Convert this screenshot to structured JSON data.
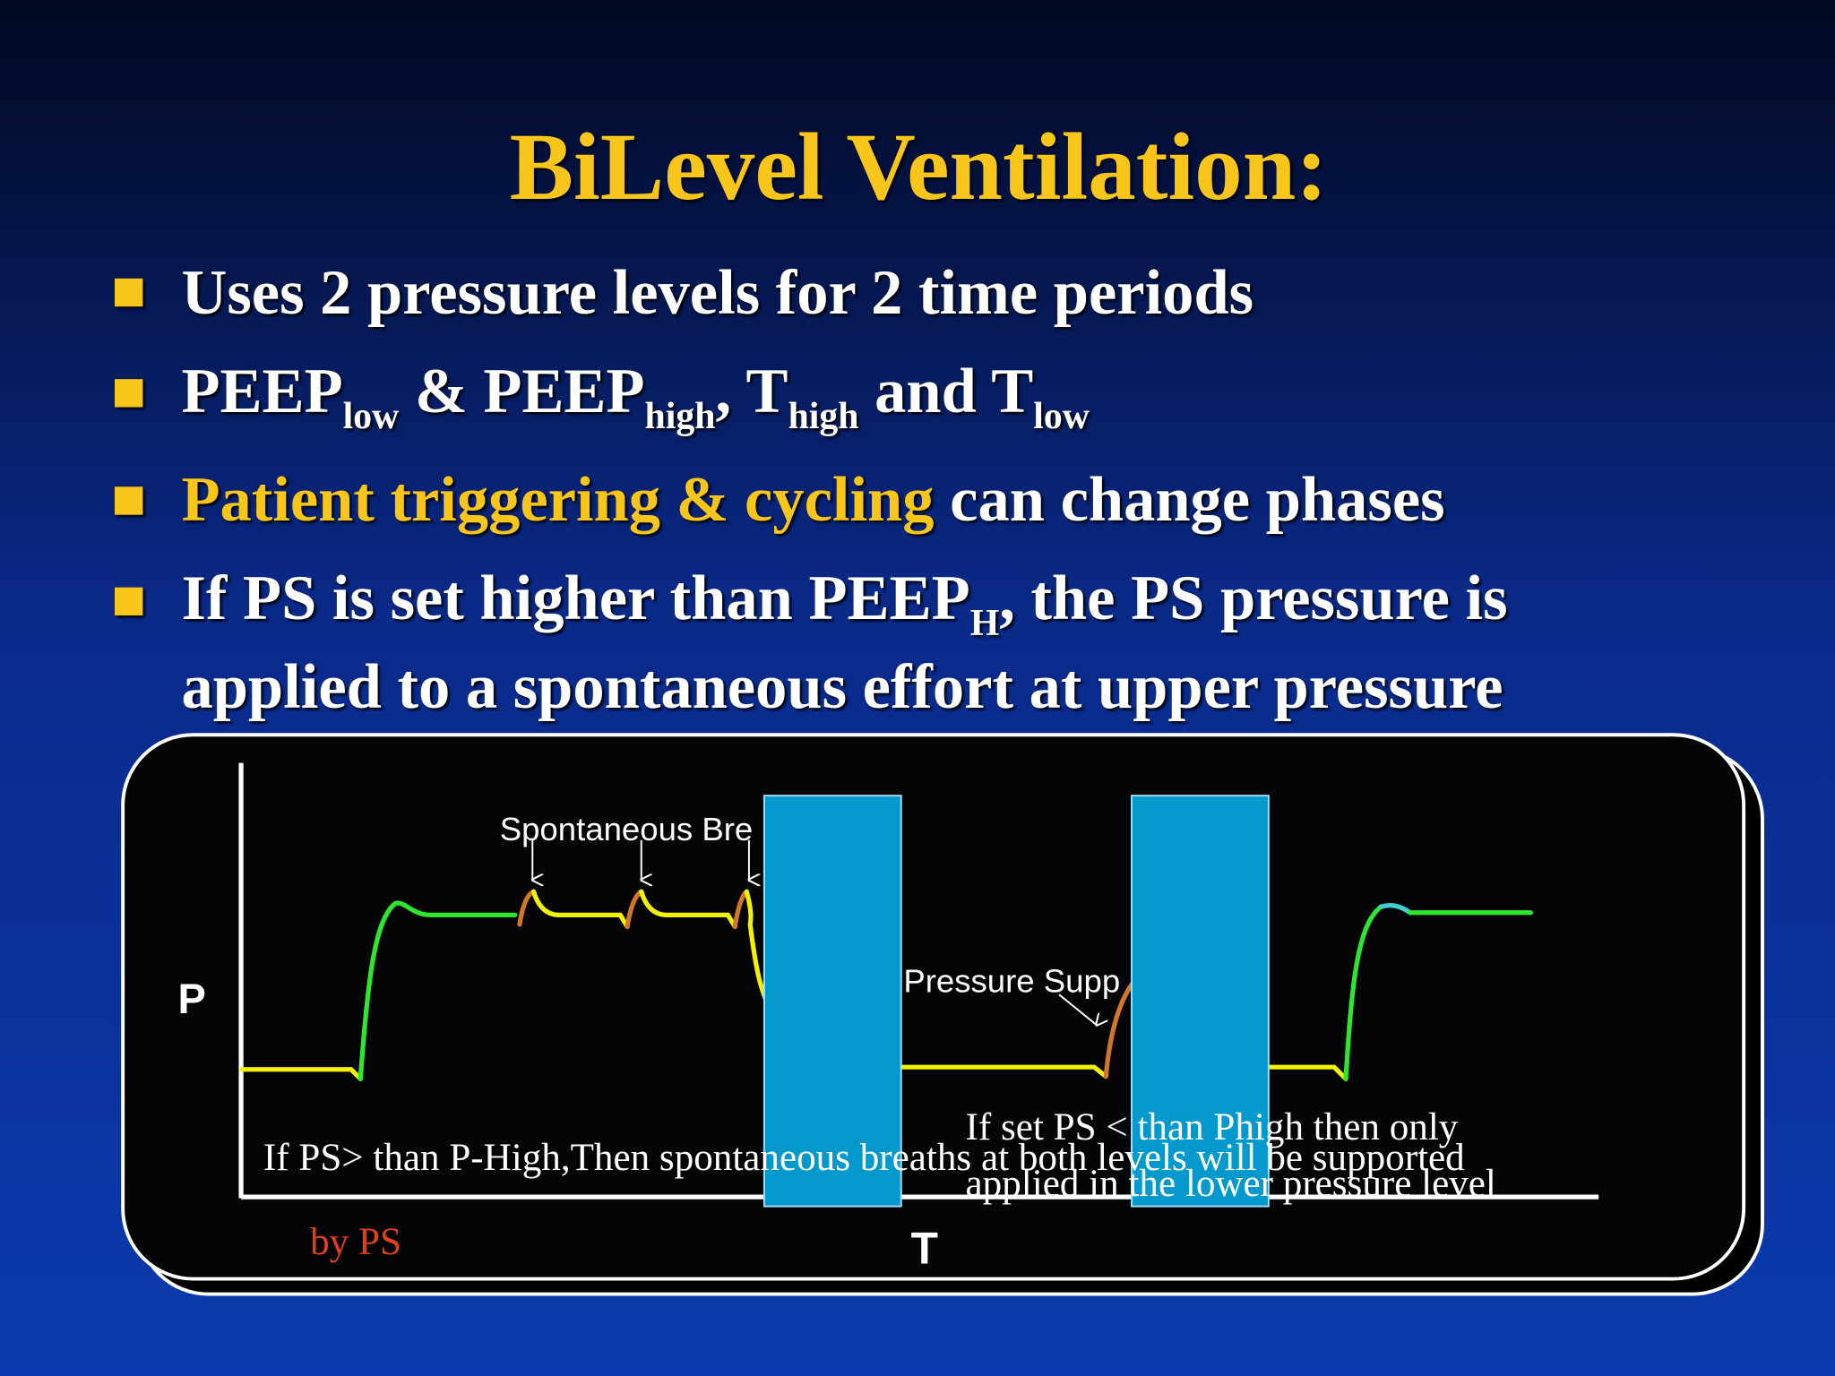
{
  "title": "BiLevel Ventilation:",
  "bullets": [
    {
      "segments": [
        "Uses 2 pressure levels for 2 time periods"
      ]
    },
    {
      "segments": [
        "PEEP",
        "low",
        " & PEEP",
        "high",
        ", T",
        "high",
        " and T",
        "low"
      ]
    },
    {
      "segments": [
        "Patient triggering & cycling",
        " can change phases"
      ]
    },
    {
      "segments": [
        "If PS is set higher than PEEP",
        "H",
        ", the PS pressure is"
      ],
      "continuation": "applied to a spontaneous effort at upper pressure"
    }
  ],
  "diagram": {
    "y_axis_label": "P",
    "x_axis_label": "T",
    "spontaneous_label": "Spontaneous Bre",
    "pressure_support_label": "Pressure Supp",
    "note_high": "If PS> than P-High,Then spontaneous breaths at both levels will be supported",
    "note_high_end": "by PS",
    "note_low": [
      "If set PS < than Phigh then only",
      "applied in the lower pressure level"
    ]
  }
}
